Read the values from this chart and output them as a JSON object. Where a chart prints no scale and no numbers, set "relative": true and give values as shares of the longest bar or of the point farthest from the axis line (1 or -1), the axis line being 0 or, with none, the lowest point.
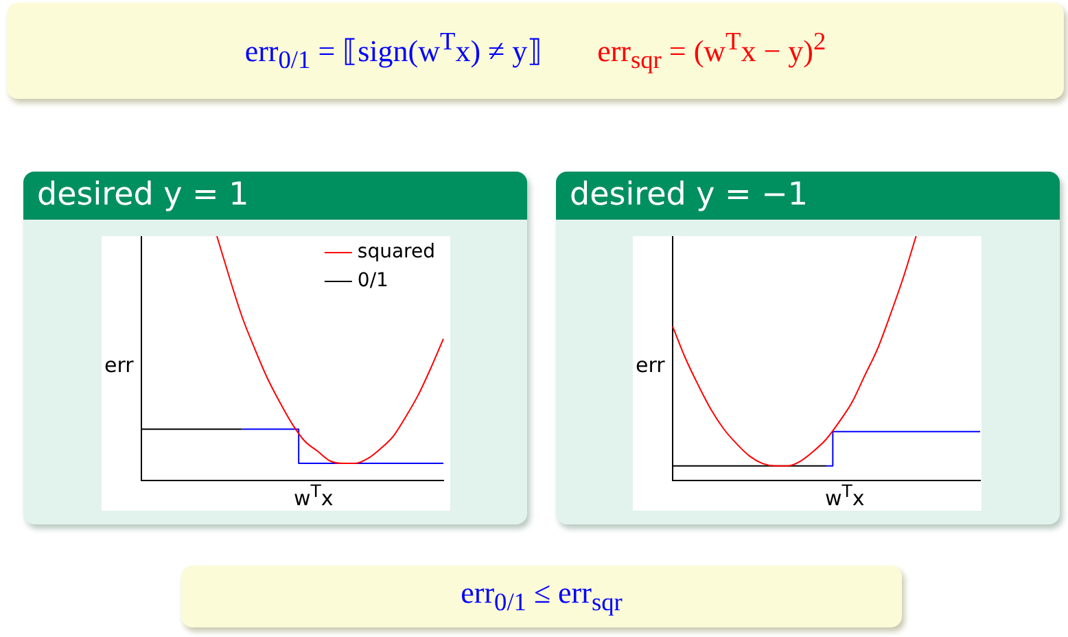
{
  "chart_data": [
    {
      "type": "other",
      "annotations": [
        "err$_{0/1}$ = ⟦sign(w$^{T}$x) ≠ y⟧",
        "err$_{sqr}$ = (w$^{T}$x − y)$^{2}$"
      ]
    },
    {
      "type": "line",
      "title": "desired y = 1",
      "xlabel": "w$^{T}$x",
      "ylabel": "err",
      "relative": true,
      "legend": "top right",
      "grid": false,
      "marker": "none",
      "categories": [
        null,
        null,
        null,
        null,
        null,
        null,
        null,
        null,
        null,
        null,
        null,
        null,
        null,
        null,
        null,
        null,
        null,
        null,
        null,
        null,
        null,
        null,
        null,
        null,
        null
      ],
      "series": [
        {
          "name": "squared",
          "color": "#ff0000",
          "values": [
            null,
            null,
            null,
            null,
            null,
            null,
            1.0,
            0.83,
            0.67,
            0.54,
            0.42,
            0.32,
            0.23,
            0.16,
            0.12,
            0.08,
            0.07,
            0.07,
            0.09,
            0.13,
            0.18,
            0.26,
            0.35,
            0.46,
            0.58
          ]
        },
        {
          "name": "0/1",
          "type": "step",
          "color": "#000000",
          "values": [
            0.21,
            0.21,
            0.21,
            0.21,
            0.21,
            0.21,
            0.21,
            0.21,
            0.21,
            null,
            null,
            null,
            null,
            null,
            null,
            null,
            null,
            null,
            null,
            null,
            null,
            null,
            null,
            null,
            null
          ]
        },
        {
          "type": "step",
          "color": "#0000ff",
          "values": [
            null,
            null,
            null,
            null,
            null,
            null,
            null,
            null,
            0.21,
            0.21,
            0.21,
            0.21,
            0.21,
            0.07,
            0.07,
            0.07,
            0.07,
            0.07,
            0.07,
            0.07,
            0.07,
            0.07,
            0.07,
            0.07,
            0.07
          ]
        }
      ]
    },
    {
      "type": "line",
      "title": "desired y = −1",
      "xlabel": "w$^{T}$x",
      "ylabel": "err",
      "relative": true,
      "legend": false,
      "grid": false,
      "marker": "none",
      "categories": [
        null,
        null,
        null,
        null,
        null,
        null,
        null,
        null,
        null,
        null,
        null,
        null,
        null,
        null,
        null,
        null,
        null,
        null,
        null,
        null,
        null,
        null,
        null,
        null,
        null
      ],
      "series": [
        {
          "color": "#ff0000",
          "values": [
            0.63,
            0.5,
            0.39,
            0.29,
            0.21,
            0.15,
            0.1,
            0.07,
            0.06,
            0.06,
            0.08,
            0.12,
            0.17,
            0.24,
            0.32,
            0.43,
            0.54,
            0.68,
            0.83,
            1.0,
            null,
            null,
            null,
            null,
            null
          ]
        },
        {
          "type": "step",
          "color": "#000000",
          "values": [
            0.06,
            0.06,
            0.06,
            0.06,
            0.06,
            0.06,
            0.06,
            0.06,
            0.06,
            0.06,
            0.06,
            0.06,
            0.06,
            null,
            null,
            null,
            null,
            null,
            null,
            null,
            null,
            null,
            null,
            null,
            null
          ]
        },
        {
          "type": "step",
          "color": "#0000ff",
          "values": [
            null,
            null,
            null,
            null,
            null,
            null,
            null,
            null,
            null,
            null,
            null,
            null,
            0.06,
            0.2,
            0.2,
            0.2,
            0.2,
            0.2,
            0.2,
            0.2,
            0.2,
            0.2,
            0.2,
            0.2,
            0.2
          ]
        }
      ]
    },
    {
      "type": "other",
      "annotations": [
        "err$_{0/1}$ ≤ err$_{sqr}$"
      ]
    }
  ]
}
